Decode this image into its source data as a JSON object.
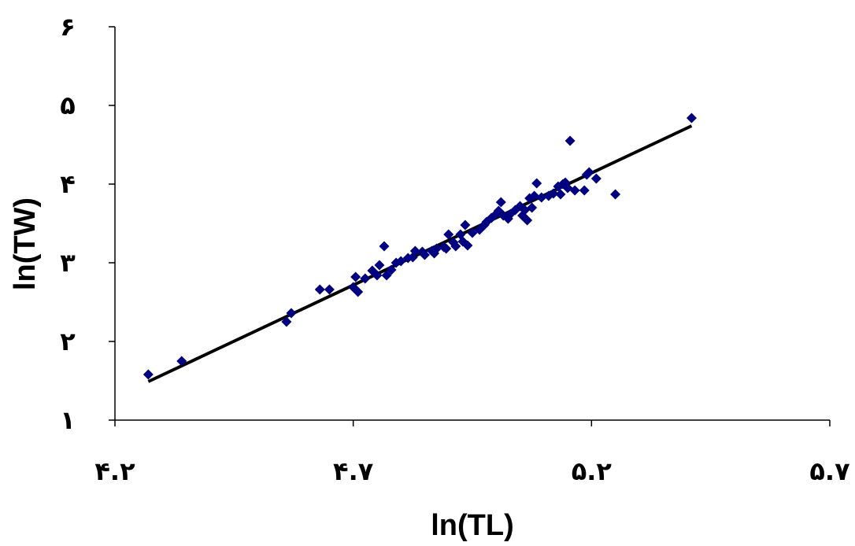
{
  "chart_data": {
    "type": "scatter",
    "title": "",
    "xlabel": "ln(TL)",
    "ylabel": "ln(TW)",
    "xlim": [
      4.2,
      5.7
    ],
    "ylim": [
      1,
      6
    ],
    "x_ticks": [
      {
        "value": 4.2,
        "label": "۴.۲"
      },
      {
        "value": 4.7,
        "label": "۴.۷"
      },
      {
        "value": 5.2,
        "label": "۵.۲"
      },
      {
        "value": 5.7,
        "label": "۵.۷"
      }
    ],
    "y_ticks": [
      {
        "value": 1,
        "label": "۱"
      },
      {
        "value": 2,
        "label": "۲"
      },
      {
        "value": 3,
        "label": "۳"
      },
      {
        "value": 4,
        "label": "۴"
      },
      {
        "value": 5,
        "label": "۵"
      },
      {
        "value": 6,
        "label": "۶"
      }
    ],
    "marker_color": "#000080",
    "line_color": "#000000",
    "grid": false,
    "series": [
      {
        "type": "scatter",
        "points": [
          [
            4.27,
            1.58
          ],
          [
            4.34,
            1.75
          ],
          [
            4.56,
            2.25
          ],
          [
            4.57,
            2.36
          ],
          [
            4.63,
            2.66
          ],
          [
            4.65,
            2.66
          ],
          [
            4.7,
            2.69
          ],
          [
            4.705,
            2.82
          ],
          [
            4.71,
            2.63
          ],
          [
            4.725,
            2.8
          ],
          [
            4.74,
            2.9
          ],
          [
            4.75,
            2.84
          ],
          [
            4.755,
            2.97
          ],
          [
            4.765,
            3.21
          ],
          [
            4.77,
            2.84
          ],
          [
            4.78,
            2.91
          ],
          [
            4.79,
            3.0
          ],
          [
            4.8,
            3.02
          ],
          [
            4.815,
            3.06
          ],
          [
            4.825,
            3.07
          ],
          [
            4.83,
            3.15
          ],
          [
            4.845,
            3.14
          ],
          [
            4.85,
            3.1
          ],
          [
            4.865,
            3.15
          ],
          [
            4.87,
            3.12
          ],
          [
            4.875,
            3.18
          ],
          [
            4.89,
            3.2
          ],
          [
            4.895,
            3.18
          ],
          [
            4.9,
            3.36
          ],
          [
            4.91,
            3.26
          ],
          [
            4.915,
            3.21
          ],
          [
            4.925,
            3.36
          ],
          [
            4.93,
            3.27
          ],
          [
            4.935,
            3.48
          ],
          [
            4.94,
            3.22
          ],
          [
            4.95,
            3.38
          ],
          [
            4.965,
            3.42
          ],
          [
            4.975,
            3.48
          ],
          [
            4.98,
            3.52
          ],
          [
            4.99,
            3.57
          ],
          [
            5.0,
            3.62
          ],
          [
            5.005,
            3.66
          ],
          [
            5.01,
            3.77
          ],
          [
            5.015,
            3.6
          ],
          [
            5.025,
            3.56
          ],
          [
            5.03,
            3.62
          ],
          [
            5.04,
            3.67
          ],
          [
            5.05,
            3.72
          ],
          [
            5.055,
            3.6
          ],
          [
            5.06,
            3.67
          ],
          [
            5.065,
            3.54
          ],
          [
            5.07,
            3.82
          ],
          [
            5.075,
            3.7
          ],
          [
            5.08,
            3.85
          ],
          [
            5.085,
            4.01
          ],
          [
            5.095,
            3.83
          ],
          [
            5.11,
            3.85
          ],
          [
            5.12,
            3.88
          ],
          [
            5.13,
            3.97
          ],
          [
            5.135,
            3.87
          ],
          [
            5.14,
            4.0
          ],
          [
            5.145,
            4.02
          ],
          [
            5.15,
            3.95
          ],
          [
            5.155,
            4.55
          ],
          [
            5.165,
            3.92
          ],
          [
            5.185,
            3.92
          ],
          [
            5.19,
            4.12
          ],
          [
            5.195,
            4.15
          ],
          [
            5.21,
            4.07
          ],
          [
            5.25,
            3.87
          ],
          [
            5.41,
            4.84
          ]
        ]
      },
      {
        "type": "line",
        "points": [
          [
            4.27,
            1.49
          ],
          [
            5.41,
            4.74
          ]
        ]
      }
    ]
  }
}
